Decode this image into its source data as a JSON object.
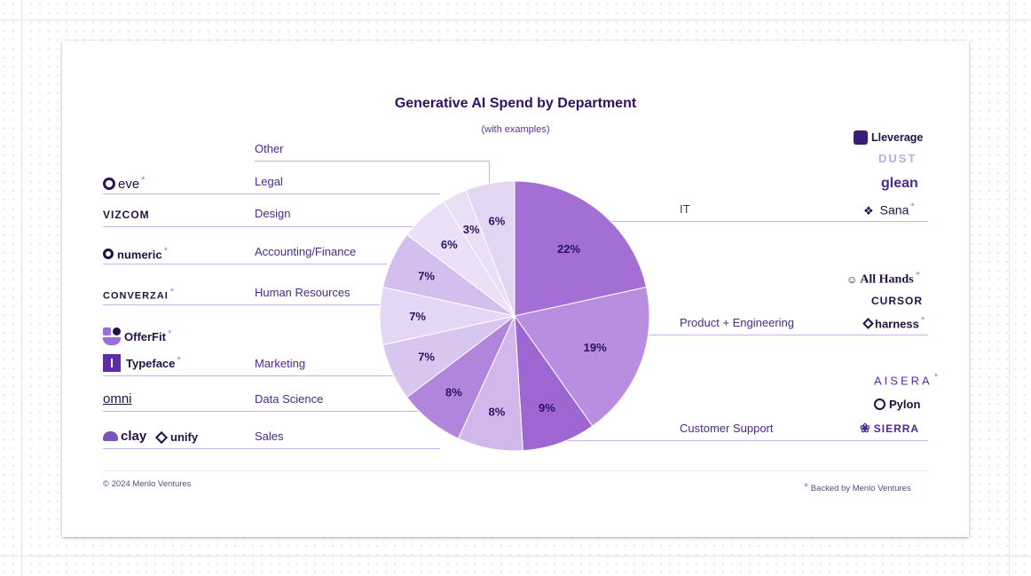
{
  "chart_data": {
    "type": "pie",
    "title": "Generative AI Spend by Department",
    "subtitle": "(with examples)",
    "slices": [
      {
        "label": "IT",
        "value": 22,
        "text": "22%",
        "color": "#a36fd4"
      },
      {
        "label": "Product + Engineering",
        "value": 19,
        "text": "19%",
        "color": "#b98de0"
      },
      {
        "label": "Customer Support",
        "value": 9,
        "text": "9%",
        "color": "#9e66d0"
      },
      {
        "label": "Sales",
        "value": 8,
        "text": "8%",
        "color": "#d1b8ec"
      },
      {
        "label": "Data Science",
        "value": 8,
        "text": "8%",
        "color": "#b285dc"
      },
      {
        "label": "Marketing",
        "value": 7,
        "text": "7%",
        "color": "#d9c6ef"
      },
      {
        "label": "Human Resources",
        "value": 7,
        "text": "7%",
        "color": "#e4d6f4"
      },
      {
        "label": "Accounting/Finance",
        "value": 7,
        "text": "7%",
        "color": "#d3bfed"
      },
      {
        "label": "Design",
        "value": 6,
        "text": "6%",
        "color": "#ecdff8"
      },
      {
        "label": "Legal",
        "value": 3,
        "text": "3%",
        "color": "#e9e0f6"
      },
      {
        "label": "Other",
        "value": 6,
        "text": "6%",
        "color": "#e2d6f3"
      }
    ]
  },
  "left_labels": {
    "other": "Other",
    "legal": "Legal",
    "design": "Design",
    "accounting": "Accounting/Finance",
    "hr": "Human Resources",
    "marketing": "Marketing",
    "data_science": "Data Science",
    "sales": "Sales"
  },
  "right_labels": {
    "it": "IT",
    "product": "Product + Engineering",
    "support": "Customer Support"
  },
  "logos": {
    "eve": "eve",
    "vizcom": "VIZCOM",
    "numeric": "numeric",
    "converzai": "CONVERZAI",
    "offerfit": "OfferFit",
    "typeface": "Typeface",
    "omni": "omni",
    "clay": "clay",
    "unify": "unify",
    "lleverage": "Lleverage",
    "dust": "DUST",
    "glean": "glean",
    "sana": "Sana",
    "allhands": "All Hands",
    "cursor": "CURSOR",
    "harness": "harness",
    "aisera": "AISERA",
    "pylon": "Pylon",
    "sierra": "SIERRA"
  },
  "star": "*",
  "footer": {
    "copyright": "© 2024 Menlo Ventures",
    "backed": "Backed by Menlo Ventures"
  },
  "colors": {
    "accent": "#7b4fc6",
    "title": "#2e1260"
  }
}
